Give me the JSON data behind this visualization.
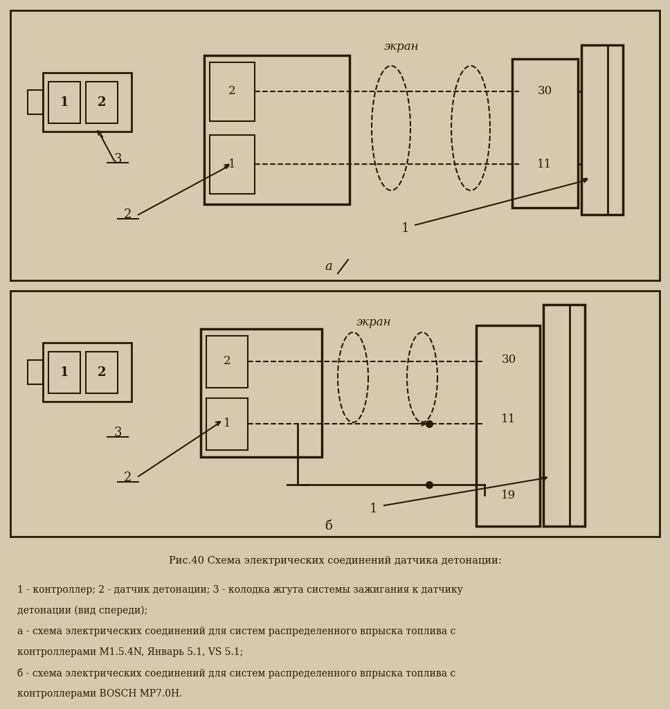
{
  "bg_color": "#d5cab0",
  "line_color": "#2a1a05",
  "title": "Рис.40 Схема электрических соединений датчика детонации:",
  "cap1": "1 - контроллер; 2 - датчик детонации; 3 - колодка жгута системы зажигания к датчику",
  "cap2": "детонации (вид спереди);",
  "cap3": "а - схема электрических соединений для систем распределенного впрыска топлива с",
  "cap4": "контроллерами M1.5.4N, Январь 5.1, VS 5.1;",
  "cap5": "б - схема электрических соединений для систем распределенного впрыска топлива с",
  "cap6": "контроллерами BOSCH MP7.0Н.",
  "ekran": "экран",
  "a_label": "а",
  "b_label": "б"
}
